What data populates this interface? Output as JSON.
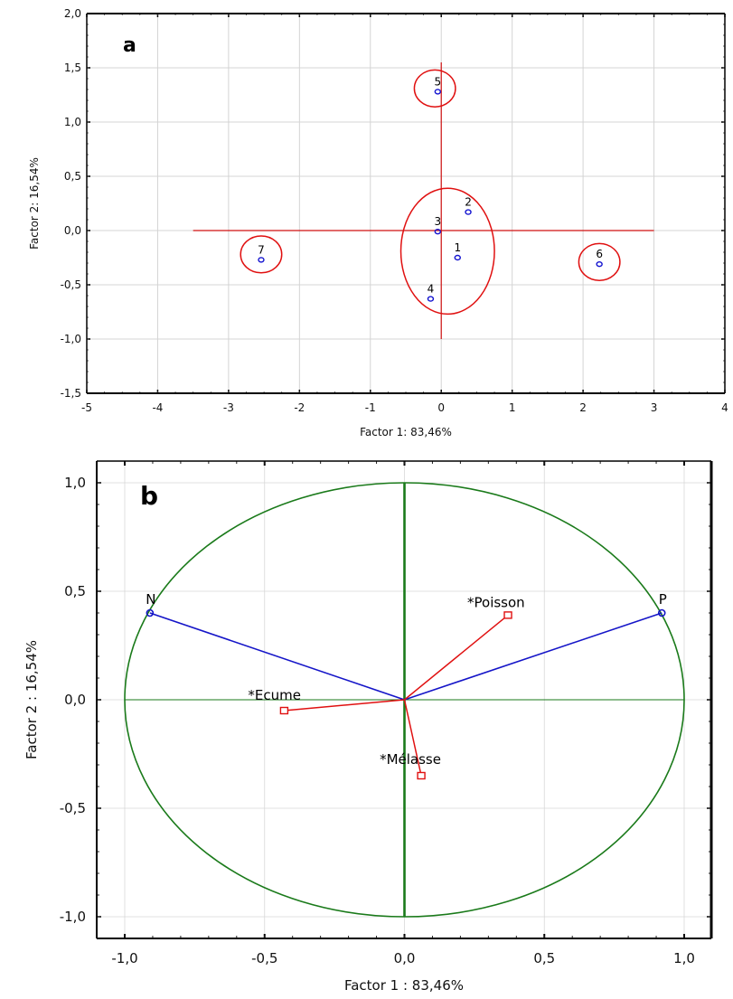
{
  "chart_data": [
    {
      "type": "scatter",
      "panel": "a",
      "title": "",
      "xlabel": "Factor 1: 83,46%",
      "ylabel": "Factor 2: 16,54%",
      "xlim": [
        -5,
        4
      ],
      "ylim": [
        -1.5,
        2.0
      ],
      "xticks": [
        -5,
        -4,
        -3,
        -2,
        -1,
        0,
        1,
        2,
        3,
        4
      ],
      "xtick_labels": [
        "-5",
        "-4",
        "-3",
        "-2",
        "-1",
        "0",
        "1",
        "2",
        "3",
        "4"
      ],
      "yticks": [
        -1.5,
        -1.0,
        -0.5,
        0.0,
        0.5,
        1.0,
        1.5,
        2.0
      ],
      "ytick_labels": [
        "-1,5",
        "-1,0",
        "-0,5",
        "0,0",
        "0,5",
        "1,0",
        "1,5",
        "2,0"
      ],
      "grid": true,
      "points": [
        {
          "label": "1",
          "x": 0.23,
          "y": -0.25
        },
        {
          "label": "2",
          "x": 0.38,
          "y": 0.17
        },
        {
          "label": "3",
          "x": -0.05,
          "y": -0.01
        },
        {
          "label": "4",
          "x": -0.15,
          "y": -0.63
        },
        {
          "label": "5",
          "x": -0.05,
          "y": 1.28
        },
        {
          "label": "6",
          "x": 2.23,
          "y": -0.31
        },
        {
          "label": "7",
          "x": -2.54,
          "y": -0.27
        }
      ],
      "reference_lines": {
        "horizontal": {
          "y": 0,
          "x_from": -3.5,
          "x_to": 3.0
        },
        "vertical": {
          "x": 0,
          "y_from": -1.0,
          "y_to": 1.55
        }
      },
      "groups": [
        {
          "members": [
            "5"
          ],
          "cx": -0.09,
          "cy": 1.31,
          "rx": 0.29,
          "ry": 0.17
        },
        {
          "members": [
            "1",
            "2",
            "3",
            "4"
          ],
          "cx": 0.09,
          "cy": -0.19,
          "rx": 0.66,
          "ry": 0.58
        },
        {
          "members": [
            "6"
          ],
          "cx": 2.23,
          "cy": -0.29,
          "rx": 0.29,
          "ry": 0.17
        },
        {
          "members": [
            "7"
          ],
          "cx": -2.54,
          "cy": -0.22,
          "rx": 0.29,
          "ry": 0.17
        }
      ],
      "colors": {
        "points": "#1515d0",
        "groups": "#e01010",
        "reference": "#d01010",
        "grid": "#d4d4d4"
      }
    },
    {
      "type": "scatter",
      "panel": "b",
      "subtype": "correlation-circle",
      "title": "",
      "xlabel": "Factor 1 : 83,46%",
      "ylabel": "Factor 2 : 16,54%",
      "xlim": [
        -1.1,
        1.1
      ],
      "ylim": [
        -1.1,
        1.1
      ],
      "xticks": [
        -1.0,
        -0.5,
        0.0,
        0.5,
        1.0
      ],
      "xtick_labels": [
        "-1,0",
        "-0,5",
        "0,0",
        "0,5",
        "1,0"
      ],
      "yticks": [
        -1.0,
        -0.5,
        0.0,
        0.5,
        1.0
      ],
      "ytick_labels": [
        "-1,0",
        "-0,5",
        "0,0",
        "0,5",
        "1,0"
      ],
      "grid": true,
      "unit_circle": true,
      "active_variables": [
        {
          "label": "N",
          "x": -0.91,
          "y": 0.4
        },
        {
          "label": "P",
          "x": 0.92,
          "y": 0.4
        }
      ],
      "supplementary_variables": [
        {
          "label": "*Poisson",
          "x": 0.37,
          "y": 0.39
        },
        {
          "label": "*Ecume",
          "x": -0.43,
          "y": -0.05
        },
        {
          "label": "*Mélasse",
          "x": 0.06,
          "y": -0.35
        }
      ],
      "colors": {
        "circle": "#1a7a1a",
        "active": "#1515c8",
        "supplementary": "#e01010",
        "grid": "#d8d8d8"
      }
    }
  ],
  "panels": {
    "a": {
      "letter": "a"
    },
    "b": {
      "letter": "b"
    }
  }
}
